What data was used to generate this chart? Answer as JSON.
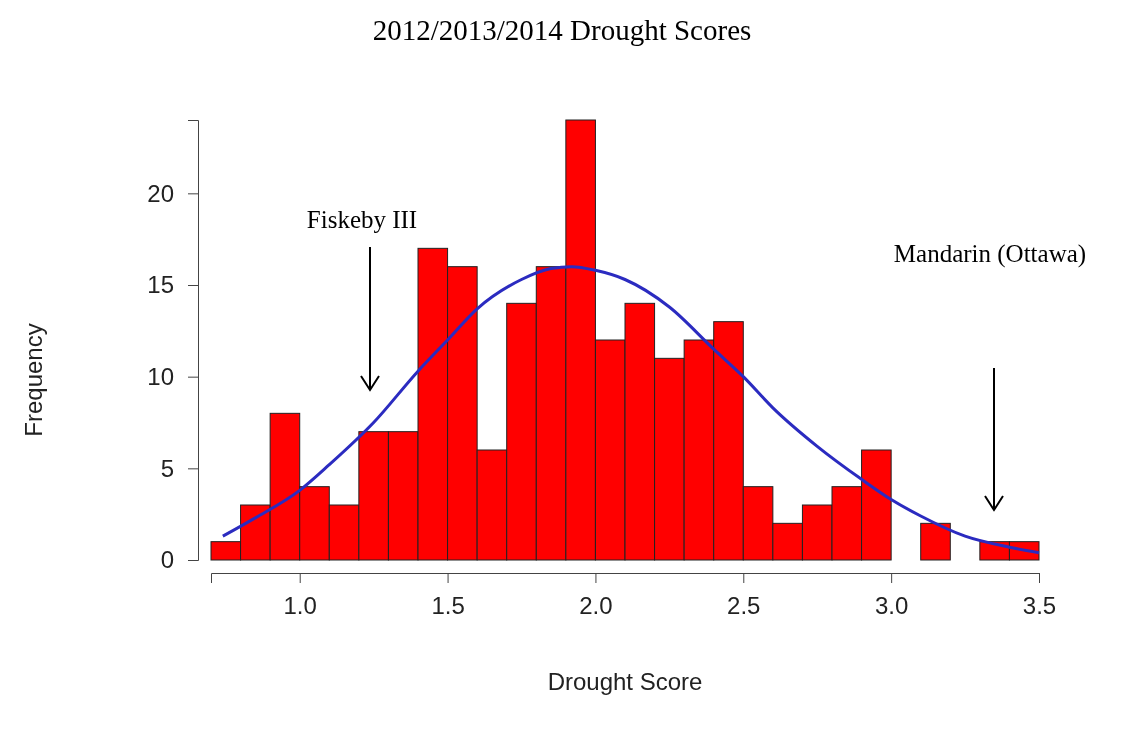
{
  "chart_data": {
    "type": "histogram",
    "title": "2012/2013/2014 Drought Scores",
    "xlabel": "Drought Score",
    "ylabel": "Frequency",
    "bins": [
      0.7,
      0.8,
      0.9,
      1.0,
      1.1,
      1.2,
      1.3,
      1.4,
      1.5,
      1.6,
      1.7,
      1.8,
      1.9,
      2.0,
      2.1,
      2.2,
      2.3,
      2.4,
      2.5,
      2.6,
      2.7,
      2.8,
      2.9,
      3.0,
      3.1,
      3.2,
      3.3,
      3.4,
      3.5
    ],
    "values": [
      1,
      3,
      8,
      4,
      3,
      7,
      7,
      17,
      16,
      6,
      14,
      16,
      24,
      12,
      14,
      11,
      12,
      13,
      4,
      2,
      3,
      4,
      6,
      0,
      2,
      0,
      1,
      1
    ],
    "color": "#ff0000",
    "series": [
      {
        "type": "line",
        "color": "#2b2bc0",
        "x": [
          0.74,
          0.85,
          1.0,
          1.1,
          1.25,
          1.4,
          1.5,
          1.6,
          1.75,
          1.85,
          1.92,
          2.0,
          2.1,
          2.25,
          2.4,
          2.5,
          2.6,
          2.75,
          2.9,
          3.0,
          3.1,
          3.25,
          3.4,
          3.5
        ],
        "values": [
          1.3,
          2.3,
          3.8,
          5.2,
          7.5,
          10.3,
          12.0,
          13.7,
          15.3,
          15.9,
          16.0,
          15.8,
          15.3,
          13.8,
          11.5,
          10.0,
          8.3,
          6.2,
          4.4,
          3.3,
          2.4,
          1.3,
          0.7,
          0.4
        ]
      }
    ],
    "xlim": [
      0.7,
      3.5
    ],
    "ylim": [
      0,
      24
    ],
    "xticks": [
      {
        "value": 1,
        "label": "1.0"
      },
      {
        "value": 1.5,
        "label": "1.5"
      },
      {
        "value": 2,
        "label": "2.0"
      },
      {
        "value": 2.5,
        "label": "2.5"
      },
      {
        "value": 3,
        "label": "3.0"
      },
      {
        "value": 3.5,
        "label": "3.5"
      }
    ],
    "yticks": [
      0,
      5,
      10,
      15,
      20
    ],
    "annotations": [
      "Fiskeby III",
      "Mandarin (Ottawa)"
    ]
  }
}
